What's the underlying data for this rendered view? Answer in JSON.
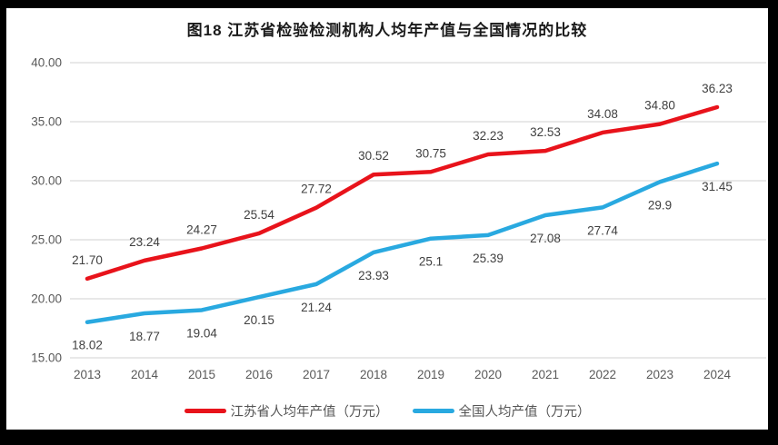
{
  "chart": {
    "title": "图18  江苏省检验检测机构人均年产值与全国情况的比较"
  },
  "chart_data": {
    "type": "line",
    "title": "图18  江苏省检验检测机构人均年产值与全国情况的比较",
    "categories": [
      "2013",
      "2014",
      "2015",
      "2016",
      "2017",
      "2018",
      "2019",
      "2020",
      "2021",
      "2022",
      "2023",
      "2024"
    ],
    "series": [
      {
        "name": "江苏省人均年产值（万元）",
        "color": "#e8131b",
        "values": [
          21.7,
          23.24,
          24.27,
          25.54,
          27.72,
          30.52,
          30.75,
          32.23,
          32.53,
          34.08,
          34.8,
          36.23
        ],
        "labels": [
          "21.70",
          "23.24",
          "24.27",
          "25.54",
          "27.72",
          "30.52",
          "30.75",
          "32.23",
          "32.53",
          "34.08",
          "34.80",
          "36.23"
        ],
        "label_position": "above"
      },
      {
        "name": "全国人均产值（万元）",
        "color": "#29a9e0",
        "values": [
          18.02,
          18.77,
          19.04,
          20.15,
          21.24,
          23.93,
          25.1,
          25.39,
          27.08,
          27.74,
          29.9,
          31.45
        ],
        "labels": [
          "18.02",
          "18.77",
          "19.04",
          "20.15",
          "21.24",
          "23.93",
          "25.1",
          "25.39",
          "27.08",
          "27.74",
          "29.9",
          "31.45"
        ],
        "label_position": "below"
      }
    ],
    "ylim": [
      15,
      40
    ],
    "y_ticks": [
      "40.00",
      "35.00",
      "30.00",
      "25.00",
      "20.00",
      "15.00"
    ],
    "y_tick_values": [
      40,
      35,
      30,
      25,
      20,
      15
    ],
    "grid": true,
    "legend_position": "bottom",
    "colors": {
      "gridline": "#d9d9d9",
      "axis_tick_label": "#595959",
      "data_label": "#404040",
      "title": "#1a1a1a",
      "frame": "#000000",
      "background": "#ffffff"
    }
  }
}
